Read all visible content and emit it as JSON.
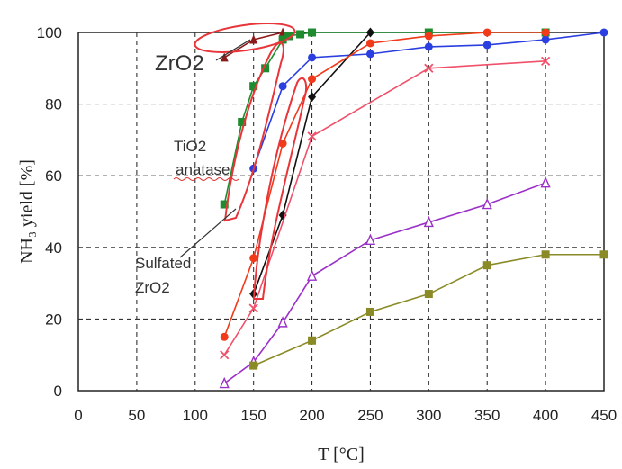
{
  "chart_data": {
    "type": "line",
    "xlabel": "T [°C]",
    "ylabel": "NH₃ yield [%]",
    "xlim": [
      0,
      450
    ],
    "ylim": [
      0,
      100
    ],
    "x_ticks": [
      0,
      50,
      100,
      150,
      200,
      250,
      300,
      350,
      400,
      450
    ],
    "y_ticks": [
      0,
      20,
      40,
      60,
      80,
      100
    ],
    "grid": "dashed",
    "series": [
      {
        "color": "#8b1a1a",
        "marker": "triangle",
        "x": [
          125,
          150,
          175
        ],
        "y": [
          93,
          98,
          100
        ]
      },
      {
        "color": "#1e8c2e",
        "marker": "square",
        "x": [
          125,
          140,
          150,
          160,
          175,
          180,
          190,
          200,
          300,
          400
        ],
        "y": [
          52,
          75,
          85,
          90,
          98,
          99,
          99.5,
          100,
          100,
          100
        ]
      },
      {
        "color": "#2b3fe0",
        "marker": "circle",
        "x": [
          150,
          175,
          200,
          250,
          300,
          350,
          400,
          450
        ],
        "y": [
          62,
          85,
          93,
          94,
          96,
          96.5,
          98,
          100
        ]
      },
      {
        "color": "#111111",
        "marker": "diamond",
        "x": [
          150,
          175,
          200,
          250
        ],
        "y": [
          27,
          49,
          82,
          100
        ]
      },
      {
        "color": "#f03a1a",
        "marker": "circle",
        "x": [
          125,
          150,
          175,
          200,
          250,
          300,
          350,
          400
        ],
        "y": [
          15,
          37,
          69,
          87,
          97,
          99,
          100,
          100
        ]
      },
      {
        "color": "#f0506a",
        "marker": "x",
        "x": [
          125,
          150,
          200,
          300,
          400
        ],
        "y": [
          10,
          23,
          71,
          90,
          92
        ]
      },
      {
        "color": "#9b30c8",
        "marker": "triangle-open",
        "x": [
          125,
          150,
          175,
          200,
          250,
          300,
          350,
          400
        ],
        "y": [
          2,
          8,
          19,
          32,
          42,
          47,
          52,
          58
        ]
      },
      {
        "color": "#8a8a26",
        "marker": "square",
        "x": [
          150,
          200,
          250,
          300,
          350,
          400,
          450
        ],
        "y": [
          7,
          14,
          22,
          27,
          35,
          38,
          38
        ]
      }
    ],
    "annotations": [
      {
        "text": "ZrO2",
        "x": 130,
        "y": 92
      },
      {
        "text": "TiO2",
        "x": 135,
        "y": 65
      },
      {
        "text": "anatase",
        "x": 135,
        "y": 61
      },
      {
        "text": "Sulfated",
        "x": 120,
        "y": 35
      },
      {
        "text": "ZrO2",
        "x": 120,
        "y": 28
      }
    ]
  }
}
